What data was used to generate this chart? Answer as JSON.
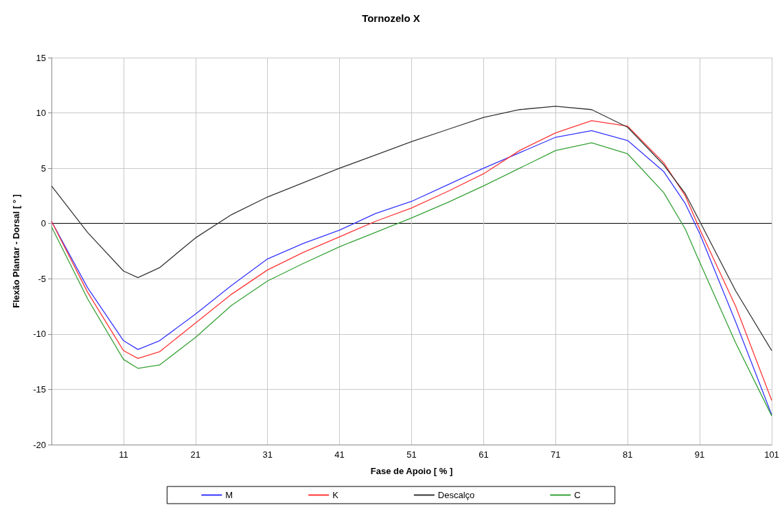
{
  "chart_data": {
    "type": "line",
    "title": "Tornozelo X",
    "xlabel": "Fase de Apoio [ % ]",
    "ylabel": "Flexão Plantar - Dorsal [ ° ]",
    "x": [
      1,
      6,
      11,
      13,
      16,
      21,
      26,
      31,
      36,
      41,
      46,
      51,
      56,
      61,
      66,
      71,
      76,
      81,
      86,
      89,
      91,
      96,
      101
    ],
    "series": [
      {
        "name": "M",
        "color": "#3333ff",
        "values": [
          0.2,
          -5.8,
          -10.6,
          -11.4,
          -10.6,
          -8.2,
          -5.6,
          -3.2,
          -1.8,
          -0.6,
          0.9,
          2.0,
          3.5,
          5.0,
          6.4,
          7.8,
          8.4,
          7.5,
          4.7,
          1.8,
          -0.9,
          -8.9,
          -17.3
        ]
      },
      {
        "name": "K",
        "color": "#ff3333",
        "values": [
          0.2,
          -6.2,
          -11.5,
          -12.2,
          -11.6,
          -9.0,
          -6.4,
          -4.2,
          -2.6,
          -1.2,
          0.2,
          1.4,
          2.9,
          4.5,
          6.6,
          8.2,
          9.3,
          8.8,
          5.5,
          2.5,
          -0.5,
          -7.5,
          -16.0
        ]
      },
      {
        "name": "Descalço",
        "color": "#333333",
        "values": [
          3.4,
          -0.8,
          -4.3,
          -4.9,
          -4.0,
          -1.3,
          0.8,
          2.4,
          3.7,
          5.0,
          6.2,
          7.4,
          8.5,
          9.6,
          10.3,
          10.6,
          10.3,
          8.7,
          5.3,
          2.7,
          0.2,
          -6.1,
          -11.5
        ]
      },
      {
        "name": "C",
        "color": "#33a033",
        "values": [
          -0.3,
          -6.8,
          -12.3,
          -13.1,
          -12.8,
          -10.3,
          -7.4,
          -5.2,
          -3.6,
          -2.1,
          -0.8,
          0.5,
          1.9,
          3.4,
          5.0,
          6.6,
          7.3,
          6.3,
          2.8,
          -0.5,
          -3.5,
          -10.8,
          -17.4
        ]
      }
    ],
    "xlim": [
      1,
      101
    ],
    "xticks": [
      11,
      21,
      31,
      41,
      51,
      61,
      71,
      81,
      91,
      101
    ],
    "ylim": [
      -20,
      15
    ],
    "yticks": [
      -20,
      -15,
      -10,
      -5,
      0,
      5,
      10,
      15
    ],
    "grid": true,
    "legend": "bottom",
    "marker": "none",
    "line_style": "solid"
  }
}
